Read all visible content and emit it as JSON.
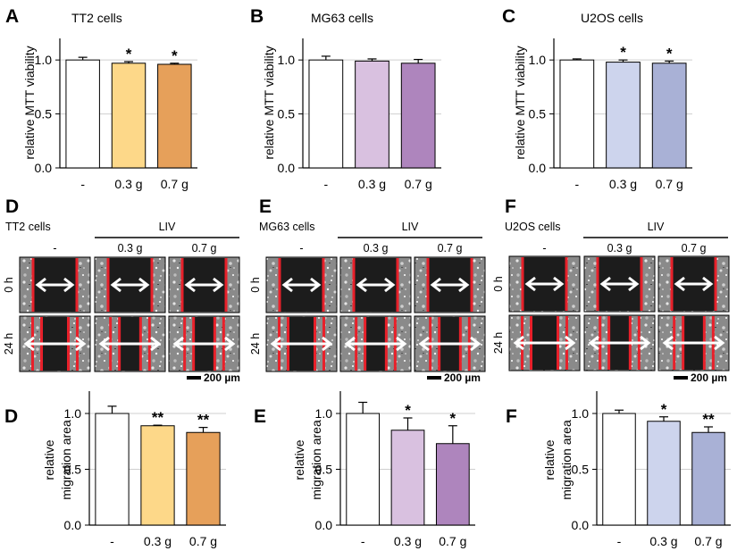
{
  "chart_data": [
    {
      "type": "bar",
      "panel": "A",
      "title": "TT2 cells",
      "ylabel": "relative MTT viability",
      "categories": [
        "-",
        "0.3 g",
        "0.7 g"
      ],
      "values": [
        1.0,
        0.97,
        0.96
      ],
      "errors": [
        0.025,
        0.015,
        0.01
      ],
      "significance": [
        "",
        "*",
        "*"
      ],
      "ylim": [
        0,
        1.2
      ],
      "yticks": [
        "0.0",
        "0.5",
        "1.0"
      ],
      "colors": [
        "#ffffff",
        "#fdd889",
        "#e6a05a"
      ],
      "grid": true
    },
    {
      "type": "bar",
      "panel": "B",
      "title": "MG63 cells",
      "ylabel": "relative MTT viability",
      "categories": [
        "-",
        "0.3 g",
        "0.7 g"
      ],
      "values": [
        1.0,
        0.99,
        0.97
      ],
      "errors": [
        0.035,
        0.02,
        0.035
      ],
      "significance": [
        "",
        "",
        ""
      ],
      "ylim": [
        0,
        1.2
      ],
      "yticks": [
        "0.0",
        "0.5",
        "1.0"
      ],
      "colors": [
        "#ffffff",
        "#d9c1e0",
        "#ae85bd"
      ],
      "grid": true
    },
    {
      "type": "bar",
      "panel": "C",
      "title": "U2OS cells",
      "ylabel": "relative MTT viability",
      "categories": [
        "-",
        "0.3 g",
        "0.7 g"
      ],
      "values": [
        1.0,
        0.98,
        0.97
      ],
      "errors": [
        0.01,
        0.02,
        0.02
      ],
      "significance": [
        "",
        "*",
        "*"
      ],
      "ylim": [
        0,
        1.2
      ],
      "yticks": [
        "0.0",
        "0.5",
        "1.0"
      ],
      "colors": [
        "#ffffff",
        "#cdd4ed",
        "#a9b1d6"
      ],
      "grid": true
    },
    {
      "type": "bar",
      "panel": "D",
      "ylabel": "relative migration area",
      "categories": [
        "-",
        "0.3 g",
        "0.7 g"
      ],
      "values": [
        1.0,
        0.89,
        0.83
      ],
      "errors": [
        0.065,
        0.005,
        0.045
      ],
      "significance": [
        "",
        "**",
        "**"
      ],
      "ylim": [
        0,
        1.2
      ],
      "yticks": [
        "0.0",
        "0.5",
        "1.0"
      ],
      "colors": [
        "#ffffff",
        "#fdd889",
        "#e6a05a"
      ],
      "grid": true
    },
    {
      "type": "bar",
      "panel": "E",
      "ylabel": "relative migration area",
      "categories": [
        "-",
        "0.3 g",
        "0.7 g"
      ],
      "values": [
        1.0,
        0.85,
        0.73
      ],
      "errors": [
        0.1,
        0.11,
        0.16
      ],
      "significance": [
        "",
        "*",
        "*"
      ],
      "ylim": [
        0,
        1.2
      ],
      "yticks": [
        "0.0",
        "0.5",
        "1.0"
      ],
      "colors": [
        "#ffffff",
        "#d9c1e0",
        "#ae85bd"
      ],
      "grid": true
    },
    {
      "type": "bar",
      "panel": "F",
      "ylabel": "relative migration area",
      "categories": [
        "-",
        "0.3 g",
        "0.7 g"
      ],
      "values": [
        1.0,
        0.93,
        0.83
      ],
      "errors": [
        0.03,
        0.04,
        0.05
      ],
      "significance": [
        "",
        "*",
        "**"
      ],
      "ylim": [
        0,
        1.2
      ],
      "yticks": [
        "0.0",
        "0.5",
        "1.0"
      ],
      "colors": [
        "#ffffff",
        "#cdd4ed",
        "#a9b1d6"
      ],
      "grid": true
    }
  ],
  "image_panels": [
    {
      "panel": "D",
      "title": "TT2 cells",
      "group_label": "LIV",
      "columns": [
        "-",
        "0.3 g",
        "0.7 g"
      ],
      "rows": [
        "0 h",
        "24 h"
      ],
      "scale_bar": "200 µm"
    },
    {
      "panel": "E",
      "title": "MG63 cells",
      "group_label": "LIV",
      "columns": [
        "-",
        "0.3 g",
        "0.7 g"
      ],
      "rows": [
        "0 h",
        "24 h"
      ],
      "scale_bar": "200 µm"
    },
    {
      "panel": "F",
      "title": "U2OS cells",
      "group_label": "LIV",
      "columns": [
        "-",
        "0.3 g",
        "0.7 g"
      ],
      "rows": [
        "0 h",
        "24 h"
      ],
      "scale_bar": "200 µm"
    }
  ],
  "colors": {
    "image_background": "#1c1c1c",
    "scratch_line": "#e8202a",
    "arrow": "#ffffff",
    "grid": "#cfcfcf"
  }
}
